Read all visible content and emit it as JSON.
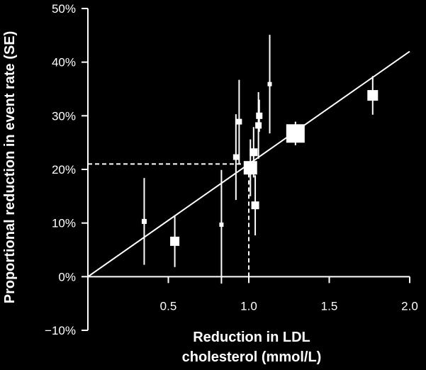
{
  "chart_data": {
    "type": "scatter",
    "xlabel_lines": [
      "Reduction in LDL",
      "cholesterol (mmol/L)"
    ],
    "ylabel": "Proportional reduction in event rate (SE)",
    "xlim": [
      0,
      2.0
    ],
    "ylim": [
      -10,
      50
    ],
    "x_ticks": [
      0.5,
      1.0,
      1.5,
      2.0
    ],
    "x_tick_labels": [
      "0.5",
      "1.0",
      "1.5",
      "2.0"
    ],
    "y_ticks": [
      -10,
      0,
      10,
      20,
      30,
      40,
      50
    ],
    "y_tick_labels": [
      "−10%",
      "0%",
      "10%",
      "20%",
      "30%",
      "40%",
      "50%"
    ],
    "grid": false,
    "points": [
      {
        "x": 0.35,
        "y": 10.3,
        "low": 2.2,
        "high": 18.4,
        "size": 7
      },
      {
        "x": 0.54,
        "y": 6.6,
        "low": 1.8,
        "high": 11.4,
        "size": 13
      },
      {
        "x": 0.83,
        "y": 9.7,
        "low": -1.3,
        "high": 19.9,
        "size": 6
      },
      {
        "x": 0.92,
        "y": 22.3,
        "low": 14.3,
        "high": 30.3,
        "size": 8
      },
      {
        "x": 0.94,
        "y": 28.9,
        "low": 21.0,
        "high": 36.7,
        "size": 8
      },
      {
        "x": 1.01,
        "y": 20.3,
        "low": 15.0,
        "high": 25.6,
        "size": 19
      },
      {
        "x": 1.03,
        "y": 23.2,
        "low": 18.5,
        "high": 27.9,
        "size": 11
      },
      {
        "x": 1.04,
        "y": 13.3,
        "low": 7.7,
        "high": 18.9,
        "size": 11
      },
      {
        "x": 1.06,
        "y": 28.2,
        "low": 22.0,
        "high": 34.4,
        "size": 9
      },
      {
        "x": 1.065,
        "y": 30.0,
        "low": 27.0,
        "high": 33.0,
        "size": 9
      },
      {
        "x": 1.13,
        "y": 35.9,
        "low": 26.7,
        "high": 45.1,
        "size": 6
      },
      {
        "x": 1.29,
        "y": 26.7,
        "low": 24.5,
        "high": 28.9,
        "size": 26
      },
      {
        "x": 1.77,
        "y": 33.8,
        "low": 30.2,
        "high": 37.4,
        "size": 15
      }
    ],
    "fit_line": {
      "x": [
        0,
        2.0
      ],
      "y": [
        0,
        42.0
      ]
    },
    "reference": {
      "x": 1.0,
      "y": 21.0
    }
  }
}
